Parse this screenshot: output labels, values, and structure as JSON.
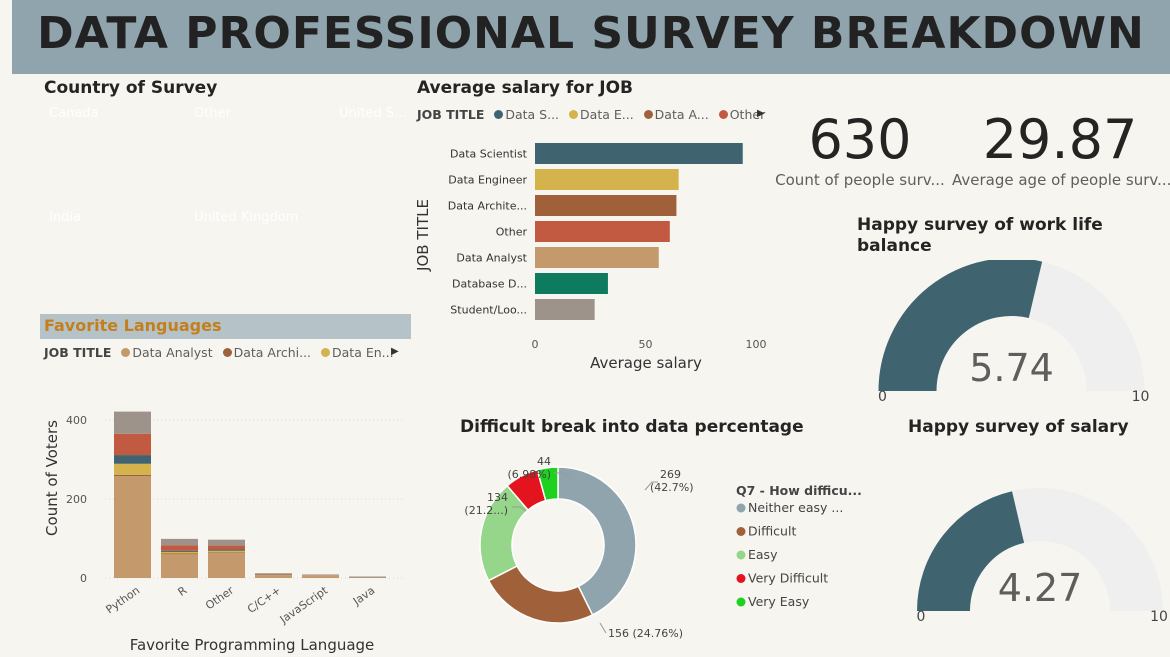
{
  "header": {
    "title": "DATA PROFESSIONAL SURVEY BREAKDOWN"
  },
  "treemap": {
    "title": "Country of Survey",
    "cells": [
      {
        "label": "Canada",
        "color": "#3f6470"
      },
      {
        "label": "Other",
        "color": "#a0613a"
      },
      {
        "label": "United S...",
        "color": "#c49a6c"
      },
      {
        "label": "India",
        "color": "#d4b24c"
      },
      {
        "label": "United Kingdom",
        "color": "#c15a40"
      }
    ]
  },
  "salary_chart": {
    "title": "Average salary for JOB",
    "legend_title": "JOB TITLE",
    "legend": [
      {
        "name": "Data S...",
        "color": "#3f6470"
      },
      {
        "name": "Data E...",
        "color": "#d4b24c"
      },
      {
        "name": "Data A...",
        "color": "#a0613a"
      },
      {
        "name": "Other",
        "color": "#c15a40"
      }
    ]
  },
  "languages": {
    "title": "Favorite Languages",
    "legend_title": "JOB TITLE",
    "legend": [
      {
        "name": "Data Analyst",
        "color": "#c49a6c"
      },
      {
        "name": "Data Archi...",
        "color": "#a0613a"
      },
      {
        "name": "Data En...",
        "color": "#d4b24c"
      }
    ]
  },
  "kpis": [
    {
      "value": "630",
      "label": "Count of people surv..."
    },
    {
      "value": "29.87",
      "label": "Average age of people surv..."
    }
  ],
  "donut_title": "Difficult break into data percentage",
  "gauges": [
    {
      "title_line1": "Happy survey of work life",
      "title_line2": "balance",
      "value": 5.74,
      "value_text": "5.74",
      "min_label": "0",
      "max_label": "10",
      "fill_color": "#3f6470",
      "track_color": "#efefef"
    },
    {
      "title_line1": "Happy survey of salary",
      "title_line2": "",
      "value": 4.27,
      "value_text": "4.27",
      "min_label": "0",
      "max_label": "10",
      "fill_color": "#3f6470",
      "track_color": "#efefef"
    }
  ],
  "chart_data": [
    {
      "type": "bar",
      "orientation": "horizontal",
      "title": "Average salary for JOB",
      "xlabel": "Average salary",
      "ylabel": "JOB TITLE",
      "categories": [
        "Data Scientist",
        "Data Engineer",
        "Data Archite...",
        "Other",
        "Data Analyst",
        "Database D...",
        "Student/Loo..."
      ],
      "values": [
        94,
        65,
        64,
        61,
        56,
        33,
        27
      ],
      "colors": [
        "#3f6470",
        "#d4b24c",
        "#a0613a",
        "#c15a40",
        "#c49a6c",
        "#0e7a5e",
        "#9e938a"
      ],
      "xticks": [
        "0",
        "50",
        "100"
      ],
      "xlim": [
        0,
        100
      ]
    },
    {
      "type": "bar",
      "stacked": true,
      "xlabel": "Favorite Programming Language",
      "ylabel": "Count of Voters",
      "categories": [
        "Python",
        "R",
        "Other",
        "C/C++",
        "JavaScript",
        "Java"
      ],
      "yticks": [
        "0",
        "200",
        "400"
      ],
      "ylim": [
        0,
        420
      ],
      "series": [
        {
          "name": "Data Analyst",
          "color": "#c49a6c",
          "values": [
            258,
            60,
            63,
            6,
            5,
            2
          ]
        },
        {
          "name": "Data Archi...",
          "color": "#a0613a",
          "values": [
            3,
            2,
            2,
            0,
            0,
            0
          ]
        },
        {
          "name": "Data En...",
          "color": "#d4b24c",
          "values": [
            28,
            4,
            4,
            1,
            1,
            0
          ]
        },
        {
          "color": "#3f6470",
          "values": [
            22,
            3,
            3,
            1,
            0,
            1
          ]
        },
        {
          "color": "#c15a40",
          "values": [
            54,
            14,
            10,
            2,
            1,
            0
          ]
        },
        {
          "color": "#9e938a",
          "values": [
            56,
            16,
            15,
            2,
            2,
            1
          ]
        }
      ]
    },
    {
      "type": "pie",
      "donut": true,
      "title": "Difficult break into data percentage",
      "legend_title": "Q7 - How difficu...",
      "slices": [
        {
          "name": "Neither easy ...",
          "value": 269,
          "label": "269",
          "pct_label": "(42.7%)",
          "color": "#8fa4ad"
        },
        {
          "name": "Difficult",
          "value": 156,
          "label": "156 (24.76%)",
          "pct_label": "",
          "color": "#a0613a"
        },
        {
          "name": "Easy",
          "value": 134,
          "label": "134",
          "pct_label": "(21.2...)",
          "color": "#96d68a"
        },
        {
          "name": "Very Difficult",
          "value": 44,
          "label": "44",
          "pct_label": "(6.98%)",
          "color": "#e3141e"
        },
        {
          "name": "Very Easy",
          "value": 27,
          "label": "",
          "pct_label": "",
          "color": "#1ed11e"
        }
      ]
    }
  ]
}
